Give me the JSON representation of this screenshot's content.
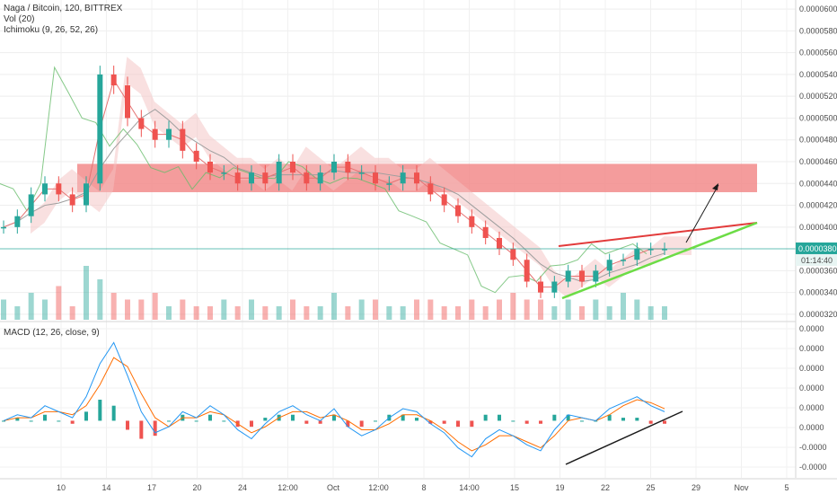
{
  "legend": {
    "title": "Naga / Bitcoin, 120, BITTREX",
    "vol": "Vol (20)",
    "ichimoku": "Ichimoku (9, 26, 52, 26)",
    "macd": "MACD (12, 26, close, 9)"
  },
  "chart_data": [
    {
      "type": "candlestick",
      "title": "Naga / Bitcoin, 120, BITTREX",
      "y_ticks": [
        "0.00006000",
        "0.00005800",
        "0.00005600",
        "0.00005400",
        "0.00005200",
        "0.00005000",
        "0.00004800",
        "0.00004600",
        "0.00004400",
        "0.00004200",
        "0.00004000",
        "0.00003600",
        "0.00003400",
        "0.00003200"
      ],
      "y_tick_values": [
        6e-05,
        5.8e-05,
        5.6e-05,
        5.4e-05,
        5.2e-05,
        5e-05,
        4.8e-05,
        4.6e-05,
        4.4e-05,
        4.2e-05,
        4e-05,
        3.6e-05,
        3.4e-05,
        3.2e-05
      ],
      "ylim": [
        3.15e-05,
        6.05e-05
      ],
      "last_price_label": "0.00003801",
      "last_price": 3.801e-05,
      "countdown_label": "01:14:40",
      "x_ticks": [
        "10",
        "14",
        "17",
        "20",
        "24",
        "12:00",
        "Oct",
        "12:00",
        "8",
        "14:00",
        "15",
        "19",
        "22",
        "25",
        "29",
        "Nov",
        "5"
      ],
      "resistance_zone": {
        "price_low": 4.32e-05,
        "price_high": 4.58e-05
      },
      "close_series": [
        4e-05,
        4.1e-05,
        4.3e-05,
        4.4e-05,
        4.3e-05,
        4.2e-05,
        4.4e-05,
        5.4e-05,
        5.3e-05,
        5e-05,
        4.9e-05,
        4.8e-05,
        4.9e-05,
        4.7e-05,
        4.6e-05,
        4.5e-05,
        4.5e-05,
        4.4e-05,
        4.5e-05,
        4.4e-05,
        4.6e-05,
        4.5e-05,
        4.4e-05,
        4.5e-05,
        4.6e-05,
        4.5e-05,
        4.5e-05,
        4.4e-05,
        4.4e-05,
        4.5e-05,
        4.4e-05,
        4.3e-05,
        4.2e-05,
        4.1e-05,
        4e-05,
        3.9e-05,
        3.8e-05,
        3.7e-05,
        3.5e-05,
        3.4e-05,
        3.5e-05,
        3.6e-05,
        3.5e-05,
        3.6e-05,
        3.7e-05,
        3.7e-05,
        3.8e-05,
        3.8e-05,
        3.8e-05
      ],
      "volume_series": [
        3,
        2,
        4,
        3,
        5,
        2,
        8,
        6,
        4,
        3,
        3,
        4,
        2,
        3,
        2,
        2,
        3,
        2,
        3,
        2,
        2,
        3,
        2,
        2,
        4,
        2,
        3,
        3,
        2,
        2,
        3,
        3,
        2,
        2,
        3,
        2,
        3,
        4,
        3,
        3,
        2,
        3,
        2,
        3,
        2,
        4,
        3,
        2,
        2
      ]
    },
    {
      "type": "line",
      "title": "MACD (12, 26, close, 9)",
      "y_ticks": [
        "0.0000",
        "0.0000",
        "0.0000",
        "0.0000",
        "0.0000",
        "0.0000",
        "-0.0000",
        "-0.0000"
      ],
      "macd_series": [
        0.0,
        0.2,
        0.1,
        0.5,
        0.3,
        0.1,
        0.8,
        1.9,
        2.6,
        1.5,
        0.3,
        -0.4,
        -0.2,
        0.3,
        0.1,
        0.5,
        0.2,
        -0.3,
        -0.6,
        -0.1,
        0.3,
        0.5,
        0.2,
        0.0,
        0.4,
        -0.2,
        -0.5,
        -0.3,
        0.1,
        0.4,
        0.3,
        -0.1,
        -0.4,
        -0.9,
        -1.2,
        -0.6,
        -0.3,
        -0.5,
        -0.8,
        -1.0,
        -0.3,
        0.2,
        0.1,
        0.0,
        0.4,
        0.6,
        0.8,
        0.5,
        0.3
      ],
      "signal_series": [
        0.0,
        0.1,
        0.1,
        0.3,
        0.3,
        0.2,
        0.5,
        1.2,
        2.1,
        1.8,
        0.9,
        0.1,
        -0.2,
        0.1,
        0.1,
        0.3,
        0.2,
        -0.1,
        -0.4,
        -0.2,
        0.1,
        0.3,
        0.3,
        0.1,
        0.2,
        0.0,
        -0.3,
        -0.3,
        -0.1,
        0.2,
        0.2,
        0.0,
        -0.3,
        -0.7,
        -1.0,
        -0.8,
        -0.5,
        -0.5,
        -0.7,
        -0.9,
        -0.5,
        0.0,
        0.1,
        0.0,
        0.2,
        0.5,
        0.7,
        0.6,
        0.4
      ]
    }
  ],
  "colors": {
    "up": "#26a69a",
    "down": "#ef5350",
    "zone": "#f28b8b",
    "trend_upper": "#e23b3b",
    "trend_lower": "#6cdc46",
    "macd_line": "#2196f3",
    "signal_line": "#ff6d00",
    "tenkan": "#e57373",
    "kijun": "#9e9e9e",
    "chikou": "#66bb6a",
    "cloud": "#f4c1c1",
    "last_price_bg": "#26a69a",
    "arrow": "#1a1a1a",
    "macd_trend": "#1a1a1a"
  }
}
